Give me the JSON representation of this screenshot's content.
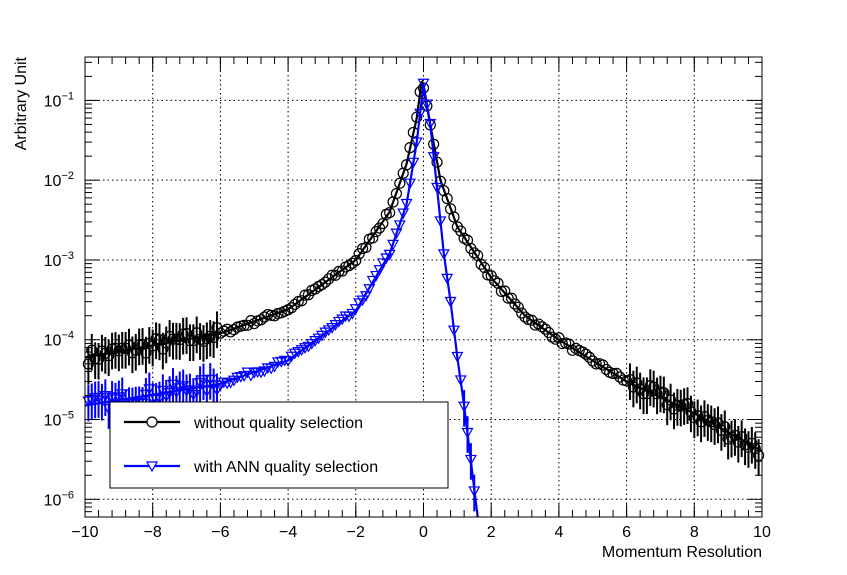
{
  "chart_data": {
    "type": "scatter",
    "title": "",
    "xlabel": "Momentum Resolution",
    "ylabel": "Arbitrary Unit",
    "xlim": [
      -10,
      10
    ],
    "ylim": [
      6e-07,
      0.35
    ],
    "yscale": "log",
    "grid": true,
    "x_ticks": [
      -10,
      -8,
      -6,
      -4,
      -2,
      0,
      2,
      4,
      6,
      8,
      10
    ],
    "x_tick_labels": [
      "−10",
      "−8",
      "−6",
      "−4",
      "−2",
      "0",
      "2",
      "4",
      "6",
      "8",
      "10"
    ],
    "y_ticks": [
      {
        "value": 1e-06,
        "base": "10",
        "exp": "−6"
      },
      {
        "value": 1e-05,
        "base": "10",
        "exp": "−5"
      },
      {
        "value": 0.0001,
        "base": "10",
        "exp": "−4"
      },
      {
        "value": 0.001,
        "base": "10",
        "exp": "−3"
      },
      {
        "value": 0.01,
        "base": "10",
        "exp": "−2"
      },
      {
        "value": 0.1,
        "base": "10",
        "exp": "−1"
      }
    ],
    "legend": {
      "placement": "bottom-left",
      "entries": [
        "without quality selection",
        "with ANN quality selection"
      ]
    },
    "series": [
      {
        "name": "without quality selection",
        "color": "#000000",
        "marker": "open-circle",
        "fit": {
          "peak": 0.18,
          "center": -0.05,
          "left": [
            [
              -10,
              6e-05
            ],
            [
              -6,
              0.00012
            ],
            [
              -4,
              0.00024
            ],
            [
              -2,
              0.001
            ],
            [
              -1,
              0.004
            ],
            [
              -0.5,
              0.016
            ],
            [
              -0.2,
              0.06
            ],
            [
              -0.05,
              0.18
            ]
          ],
          "right": [
            [
              -0.05,
              0.18
            ],
            [
              0.2,
              0.05
            ],
            [
              0.5,
              0.01
            ],
            [
              1,
              0.0026
            ],
            [
              2,
              0.0006
            ],
            [
              3,
              0.0002
            ],
            [
              4,
              0.0001
            ],
            [
              6,
              3e-05
            ],
            [
              8,
              1.2e-05
            ],
            [
              10,
              4e-06
            ]
          ]
        },
        "points": {
          "x_start": -9.9,
          "x_step": 0.1,
          "count": 199
        }
      },
      {
        "name": "with ANN quality selection",
        "color": "#0000ff",
        "marker": "open-down-triangle",
        "fit": {
          "peak": 0.16,
          "center": 0.0,
          "left": [
            [
              -10,
              1.5e-05
            ],
            [
              -6,
              2.8e-05
            ],
            [
              -4,
              5.5e-05
            ],
            [
              -2,
              0.00023
            ],
            [
              -1,
              0.0012
            ],
            [
              -0.5,
              0.005
            ],
            [
              -0.2,
              0.03
            ],
            [
              0.0,
              0.16
            ]
          ],
          "right": [
            [
              0.0,
              0.16
            ],
            [
              0.2,
              0.05
            ],
            [
              0.4,
              0.008
            ],
            [
              0.6,
              0.0012
            ],
            [
              0.8,
              0.0003
            ],
            [
              1.0,
              6e-05
            ],
            [
              1.2,
              1.5e-05
            ],
            [
              1.4,
              3e-06
            ],
            [
              1.6,
              6e-07
            ]
          ]
        },
        "points": {
          "x_start": -9.9,
          "x_step": 0.1,
          "count": 115
        }
      }
    ]
  }
}
